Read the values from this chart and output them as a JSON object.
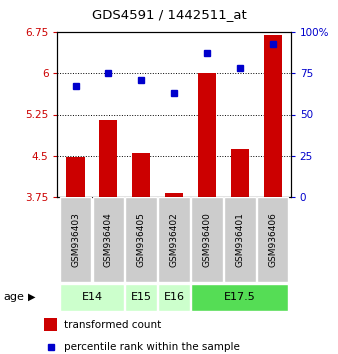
{
  "title": "GDS4591 / 1442511_at",
  "samples": [
    "GSM936403",
    "GSM936404",
    "GSM936405",
    "GSM936402",
    "GSM936400",
    "GSM936401",
    "GSM936406"
  ],
  "transformed_count": [
    4.47,
    5.15,
    4.55,
    3.82,
    6.0,
    4.63,
    6.7
  ],
  "percentile_rank": [
    67,
    75,
    71,
    63,
    87,
    78,
    93
  ],
  "ylim_left": [
    3.75,
    6.75
  ],
  "ylim_right": [
    0,
    100
  ],
  "yticks_left": [
    3.75,
    4.5,
    5.25,
    6.0,
    6.75
  ],
  "yticks_right": [
    0,
    25,
    50,
    75,
    100
  ],
  "ytick_labels_left": [
    "3.75",
    "4.5",
    "5.25",
    "6",
    "6.75"
  ],
  "ytick_labels_right": [
    "0",
    "25",
    "50",
    "75",
    "100%"
  ],
  "bar_color": "#cc0000",
  "dot_color": "#0000cc",
  "bar_width": 0.55,
  "bg_color": "#ffffff",
  "sample_bg_color": "#cccccc",
  "e14_color": "#ccffcc",
  "e15_color": "#ccffcc",
  "e16_color": "#ccffcc",
  "e175_color": "#55dd55",
  "legend_tc_color": "#cc0000",
  "legend_pr_color": "#0000cc",
  "age_group_spans": [
    {
      "label": "E14",
      "start": 0,
      "end": 1,
      "color": "#ccffcc"
    },
    {
      "label": "E15",
      "start": 2,
      "end": 2,
      "color": "#ccffcc"
    },
    {
      "label": "E16",
      "start": 3,
      "end": 3,
      "color": "#ccffcc"
    },
    {
      "label": "E17.5",
      "start": 4,
      "end": 6,
      "color": "#55dd55"
    }
  ]
}
